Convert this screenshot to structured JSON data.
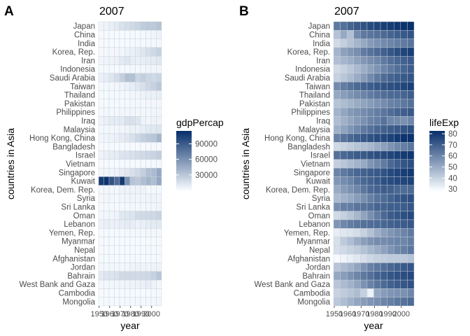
{
  "chart_data": [
    {
      "type": "heatmap",
      "panel": "A",
      "title": "2007",
      "xlabel": "year",
      "ylabel": "countries in Asia",
      "x_tick_labels": [
        "1950",
        "1960",
        "1970",
        "1980",
        "1990",
        "2000"
      ],
      "years": [
        1952,
        1957,
        1962,
        1967,
        1972,
        1977,
        1982,
        1987,
        1992,
        1997,
        2002,
        2007
      ],
      "countries": [
        "Japan",
        "China",
        "India",
        "Korea, Rep.",
        "Iran",
        "Indonesia",
        "Saudi Arabia",
        "Taiwan",
        "Thailand",
        "Pakistan",
        "Philippines",
        "Iraq",
        "Malaysia",
        "Hong Kong, China",
        "Bangladesh",
        "Israel",
        "Vietnam",
        "Singapore",
        "Kuwait",
        "Korea, Dem. Rep.",
        "Syria",
        "Sri Lanka",
        "Oman",
        "Lebanon",
        "Yemen, Rep.",
        "Myanmar",
        "Nepal",
        "Afghanistan",
        "Jordan",
        "Bahrain",
        "West Bank and Gaza",
        "Cambodia",
        "Mongolia"
      ],
      "fill_variable": "gdpPercap",
      "legend": {
        "title": "gdpPercap",
        "breaks": [
          30000,
          60000,
          90000
        ],
        "labels": [
          "30000",
          "60000",
          "90000"
        ],
        "limits": [
          0,
          115000
        ]
      },
      "color_low": "#f7fbff",
      "color_high": "#08306b",
      "values": [
        [
          3217,
          4318,
          6577,
          9847,
          14779,
          16610,
          19384,
          22376,
          26825,
          28817,
          28605,
          31656
        ],
        [
          400,
          576,
          488,
          613,
          677,
          741,
          962,
          1379,
          1656,
          2289,
          3119,
          4959
        ],
        [
          547,
          590,
          658,
          700,
          724,
          813,
          856,
          977,
          1164,
          1459,
          1747,
          2452
        ],
        [
          1031,
          1488,
          1536,
          2029,
          3031,
          4657,
          5623,
          8533,
          12104,
          15994,
          19234,
          23348
        ],
        [
          3035,
          3291,
          4187,
          5907,
          9613,
          11889,
          7608,
          6643,
          7236,
          8264,
          9241,
          11606
        ],
        [
          750,
          859,
          850,
          762,
          1111,
          1383,
          1517,
          1748,
          2383,
          3119,
          2874,
          3541
        ],
        [
          6460,
          8157,
          11626,
          16903,
          24837,
          34168,
          33693,
          21199,
          24841,
          20586,
          19015,
          21655
        ],
        [
          1207,
          1508,
          1823,
          2644,
          4063,
          5597,
          7426,
          11055,
          15216,
          20207,
          23235,
          28718
        ],
        [
          758,
          794,
          1002,
          1296,
          1525,
          1961,
          2394,
          2982,
          4617,
          5853,
          5914,
          7458
        ],
        [
          685,
          747,
          803,
          942,
          1050,
          1176,
          1443,
          1705,
          1972,
          2049,
          2093,
          2606
        ],
        [
          1273,
          1548,
          1650,
          1814,
          1989,
          2373,
          2603,
          2190,
          2279,
          2537,
          2651,
          3190
        ],
        [
          4130,
          6229,
          8342,
          8931,
          9576,
          14689,
          14517,
          11644,
          3746,
          3076,
          4391,
          4471
        ],
        [
          1831,
          1810,
          2037,
          2278,
          2850,
          3828,
          4921,
          5249,
          7277,
          10390,
          10872,
          12452
        ],
        [
          3054,
          3629,
          4693,
          6198,
          8316,
          11186,
          14561,
          20038,
          24758,
          28378,
          30209,
          39725
        ],
        [
          684,
          662,
          686,
          721,
          630,
          660,
          677,
          752,
          838,
          973,
          1136,
          1391
        ],
        [
          4087,
          5385,
          7106,
          8394,
          12787,
          13306,
          15367,
          17122,
          18051,
          20897,
          21906,
          25523
        ],
        [
          605,
          676,
          772,
          637,
          700,
          714,
          707,
          821,
          989,
          1386,
          1764,
          2442
        ],
        [
          2315,
          2844,
          3675,
          4977,
          8597,
          11210,
          15169,
          18862,
          24769,
          33519,
          36023,
          47143
        ],
        [
          108382,
          113523,
          95458,
          80895,
          109348,
          59265,
          31354,
          28118,
          34933,
          40301,
          35110,
          47307
        ],
        [
          1088,
          1571,
          1622,
          2144,
          3702,
          4106,
          4107,
          4106,
          3726,
          1691,
          1647,
          1593
        ],
        [
          1644,
          2118,
          2194,
          1882,
          2572,
          3196,
          3622,
          3117,
          3341,
          4015,
          4091,
          4185
        ],
        [
          1083,
          1073,
          1074,
          1136,
          1213,
          1348,
          1649,
          1877,
          2154,
          2664,
          3015,
          3970
        ],
        [
          1828,
          2243,
          2925,
          4721,
          10619,
          11849,
          12955,
          18116,
          18627,
          19702,
          19775,
          22316
        ],
        [
          4835,
          6090,
          5717,
          6006,
          7486,
          8660,
          7641,
          5378,
          6890,
          8755,
          9314,
          10461
        ],
        [
          782,
          805,
          826,
          863,
          1265,
          1830,
          1978,
          1972,
          1879,
          2117,
          2235,
          2281
        ],
        [
          331,
          350,
          388,
          349,
          357,
          371,
          424,
          385,
          347,
          415,
          611,
          944
        ],
        [
          546,
          598,
          652,
          676,
          674,
          695,
          719,
          776,
          898,
          1011,
          1057,
          1091
        ],
        [
          779,
          821,
          853,
          836,
          740,
          786,
          978,
          852,
          649,
          635,
          727,
          975
        ],
        [
          1547,
          1886,
          2348,
          2742,
          2110,
          2852,
          4161,
          4449,
          3431,
          3645,
          3845,
          4519
        ],
        [
          9867,
          11636,
          12753,
          14805,
          18269,
          19340,
          19211,
          18524,
          19036,
          20292,
          23404,
          29796
        ],
        [
          1516,
          1827,
          2199,
          2650,
          3134,
          3683,
          4337,
          5107,
          6018,
          7110,
          4516,
          3025
        ],
        [
          368,
          434,
          497,
          523,
          422,
          525,
          624,
          684,
          682,
          734,
          896,
          1714
        ],
        [
          786,
          912,
          1056,
          1226,
          1421,
          1648,
          1662,
          2120,
          1786,
          1902,
          2141,
          3096
        ]
      ]
    },
    {
      "type": "heatmap",
      "panel": "B",
      "title": "2007",
      "xlabel": "year",
      "ylabel": "countries in Asia",
      "x_tick_labels": [
        "1950",
        "1960",
        "1970",
        "1980",
        "1990",
        "2000"
      ],
      "years": [
        1952,
        1957,
        1962,
        1967,
        1972,
        1977,
        1982,
        1987,
        1992,
        1997,
        2002,
        2007
      ],
      "countries": [
        "Japan",
        "China",
        "India",
        "Korea, Rep.",
        "Iran",
        "Indonesia",
        "Saudi Arabia",
        "Taiwan",
        "Thailand",
        "Pakistan",
        "Philippines",
        "Iraq",
        "Malaysia",
        "Hong Kong, China",
        "Bangladesh",
        "Israel",
        "Vietnam",
        "Singapore",
        "Kuwait",
        "Korea, Dem. Rep.",
        "Syria",
        "Sri Lanka",
        "Oman",
        "Lebanon",
        "Yemen, Rep.",
        "Myanmar",
        "Nepal",
        "Afghanistan",
        "Jordan",
        "Bahrain",
        "West Bank and Gaza",
        "Cambodia",
        "Mongolia"
      ],
      "fill_variable": "lifeExp",
      "legend": {
        "title": "lifeExp",
        "breaks": [
          30,
          40,
          50,
          60,
          70,
          80
        ],
        "labels": [
          "30",
          "40",
          "50",
          "60",
          "70",
          "80"
        ],
        "limits": [
          28.8,
          82.6
        ]
      },
      "color_low": "#f7fbff",
      "color_high": "#08306b",
      "values": [
        [
          63.0,
          65.5,
          68.7,
          71.4,
          73.4,
          75.4,
          77.1,
          78.7,
          79.4,
          80.7,
          82.0,
          82.6
        ],
        [
          44.0,
          50.5,
          44.5,
          58.4,
          63.1,
          64.0,
          65.5,
          67.3,
          68.7,
          70.4,
          72.0,
          73.0
        ],
        [
          37.4,
          40.2,
          43.6,
          47.2,
          50.7,
          54.2,
          56.6,
          58.6,
          60.2,
          61.8,
          62.9,
          64.7
        ],
        [
          47.5,
          52.7,
          55.3,
          57.7,
          62.6,
          64.8,
          67.1,
          69.8,
          72.2,
          74.6,
          77.0,
          78.6
        ],
        [
          44.9,
          47.2,
          49.3,
          52.5,
          55.2,
          57.7,
          59.6,
          63.0,
          65.7,
          68.0,
          69.5,
          71.0
        ],
        [
          37.5,
          39.9,
          42.5,
          46.0,
          49.2,
          52.7,
          56.2,
          60.1,
          62.7,
          66.0,
          68.6,
          70.7
        ],
        [
          40.0,
          42.9,
          45.9,
          49.9,
          53.9,
          58.7,
          63.0,
          66.8,
          68.8,
          70.5,
          71.6,
          72.8
        ],
        [
          58.5,
          62.4,
          65.2,
          67.5,
          69.4,
          70.6,
          72.2,
          73.4,
          74.3,
          75.3,
          76.9,
          78.4
        ],
        [
          50.8,
          53.6,
          56.1,
          58.3,
          60.4,
          62.5,
          64.6,
          66.1,
          67.3,
          67.5,
          68.6,
          70.6
        ],
        [
          43.4,
          45.6,
          47.7,
          49.8,
          51.9,
          54.0,
          56.2,
          58.2,
          60.8,
          61.8,
          63.6,
          65.5
        ],
        [
          47.8,
          51.3,
          54.8,
          56.4,
          58.1,
          60.1,
          62.1,
          64.2,
          66.5,
          68.6,
          70.3,
          71.7
        ],
        [
          45.3,
          48.4,
          51.5,
          54.5,
          57.0,
          60.4,
          62.0,
          65.0,
          59.5,
          58.8,
          57.0,
          59.5
        ],
        [
          48.5,
          52.1,
          55.7,
          59.4,
          63.0,
          65.3,
          68.0,
          69.5,
          70.7,
          71.9,
          73.0,
          74.2
        ],
        [
          61.0,
          64.8,
          67.7,
          70.0,
          72.0,
          73.6,
          75.5,
          76.2,
          77.6,
          80.0,
          81.5,
          82.2
        ],
        [
          37.5,
          39.3,
          41.2,
          43.5,
          45.3,
          46.9,
          50.0,
          52.8,
          56.0,
          59.4,
          62.0,
          64.1
        ],
        [
          65.4,
          67.8,
          69.4,
          70.8,
          71.6,
          73.1,
          74.5,
          75.6,
          76.9,
          78.3,
          79.7,
          80.7
        ],
        [
          40.4,
          42.9,
          45.4,
          47.8,
          50.3,
          55.8,
          58.8,
          62.8,
          67.7,
          70.7,
          73.0,
          74.2
        ],
        [
          60.4,
          63.2,
          65.8,
          67.9,
          69.5,
          70.8,
          71.8,
          73.6,
          75.8,
          77.2,
          78.8,
          80.0
        ],
        [
          55.6,
          58.0,
          60.5,
          64.6,
          67.7,
          69.3,
          71.3,
          74.2,
          75.2,
          76.2,
          76.9,
          77.6
        ],
        [
          50.1,
          54.1,
          56.7,
          59.9,
          64.0,
          67.2,
          69.1,
          70.6,
          69.98,
          67.7,
          66.7,
          67.3
        ],
        [
          45.9,
          48.3,
          50.3,
          53.7,
          57.3,
          61.2,
          64.6,
          66.97,
          69.2,
          71.5,
          73.1,
          74.1
        ],
        [
          57.6,
          61.5,
          62.2,
          64.3,
          65.0,
          65.9,
          68.8,
          69.0,
          70.4,
          70.5,
          70.8,
          72.4
        ],
        [
          37.6,
          40.1,
          43.2,
          47.0,
          52.1,
          57.4,
          62.7,
          67.7,
          71.2,
          72.5,
          74.2,
          75.6
        ],
        [
          55.9,
          59.5,
          62.1,
          63.9,
          65.4,
          66.1,
          67.0,
          67.9,
          69.3,
          70.3,
          71.0,
          72.0
        ],
        [
          32.5,
          33.97,
          35.2,
          36.98,
          39.8,
          44.2,
          49.1,
          52.9,
          55.6,
          58.0,
          60.3,
          62.7
        ],
        [
          36.3,
          41.9,
          45.1,
          49.4,
          53.1,
          56.1,
          58.1,
          58.3,
          59.3,
          60.3,
          59.9,
          62.1
        ],
        [
          36.2,
          37.7,
          39.4,
          41.2,
          43.97,
          46.7,
          49.6,
          52.5,
          55.7,
          59.4,
          61.3,
          63.8
        ],
        [
          28.8,
          30.3,
          32.0,
          34.0,
          36.1,
          38.4,
          39.9,
          40.8,
          41.7,
          41.8,
          42.1,
          43.8
        ],
        [
          43.2,
          45.7,
          48.1,
          51.6,
          56.5,
          61.1,
          63.7,
          65.9,
          68.0,
          69.8,
          71.3,
          72.5
        ],
        [
          50.9,
          53.8,
          56.9,
          59.9,
          63.3,
          65.6,
          69.1,
          70.8,
          72.6,
          73.9,
          74.8,
          75.6
        ],
        [
          43.2,
          45.7,
          48.1,
          51.6,
          56.5,
          60.8,
          64.4,
          67.0,
          69.7,
          71.1,
          72.4,
          73.4
        ],
        [
          39.4,
          41.4,
          43.4,
          45.4,
          40.3,
          31.2,
          51.0,
          53.9,
          55.8,
          56.5,
          56.8,
          59.7
        ],
        [
          42.2,
          45.2,
          48.3,
          51.3,
          53.8,
          55.5,
          57.5,
          60.2,
          61.3,
          63.6,
          65.0,
          66.8
        ]
      ]
    }
  ],
  "panels": {
    "a": {
      "letter": "A",
      "title": "2007",
      "xlabel": "year",
      "ylabel": "countries in Asia",
      "legend_title": "gdpPercap"
    },
    "b": {
      "letter": "B",
      "title": "2007",
      "xlabel": "year",
      "ylabel": "countries in Asia",
      "legend_title": "lifeExp"
    }
  }
}
